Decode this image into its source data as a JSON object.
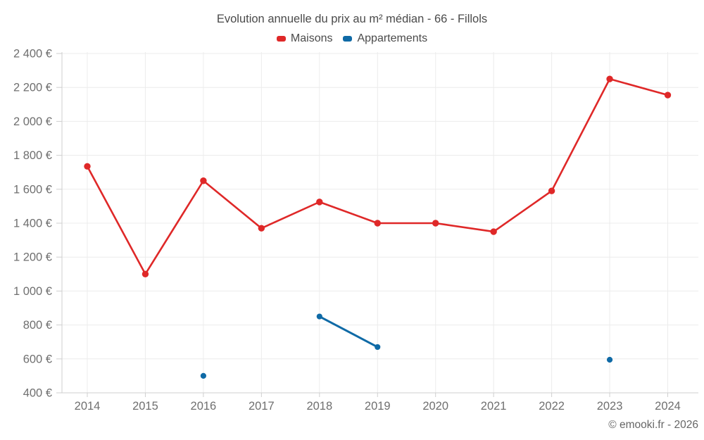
{
  "chart_data": {
    "type": "line",
    "title": "Evolution annuelle du prix au m² médian - 66 - Fillols",
    "categories": [
      "2014",
      "2015",
      "2016",
      "2017",
      "2018",
      "2019",
      "2020",
      "2021",
      "2022",
      "2023",
      "2024"
    ],
    "series": [
      {
        "name": "Maisons",
        "color": "#df2828",
        "values": [
          1735,
          1100,
          1650,
          1370,
          1525,
          1400,
          1400,
          1350,
          1590,
          2250,
          2155
        ]
      },
      {
        "name": "Appartements",
        "color": "#0f6aa6",
        "values": [
          null,
          null,
          500,
          null,
          850,
          670,
          null,
          null,
          null,
          595,
          null
        ]
      }
    ],
    "xlabel": "",
    "ylabel": "",
    "ylim": [
      400,
      2400
    ],
    "ytick_step": 200,
    "ytick_labels": [
      "400 €",
      "600 €",
      "800 €",
      "1 000 €",
      "1 200 €",
      "1 400 €",
      "1 600 €",
      "1 800 €",
      "2 000 €",
      "2 200 €",
      "2 400 €"
    ],
    "grid": true,
    "legend_position": "top"
  },
  "legend": [
    {
      "label": "Maisons",
      "color": "#df2828"
    },
    {
      "label": "Appartements",
      "color": "#0f6aa6"
    }
  ],
  "footer": {
    "copyright": "© emooki.fr - 2026"
  }
}
